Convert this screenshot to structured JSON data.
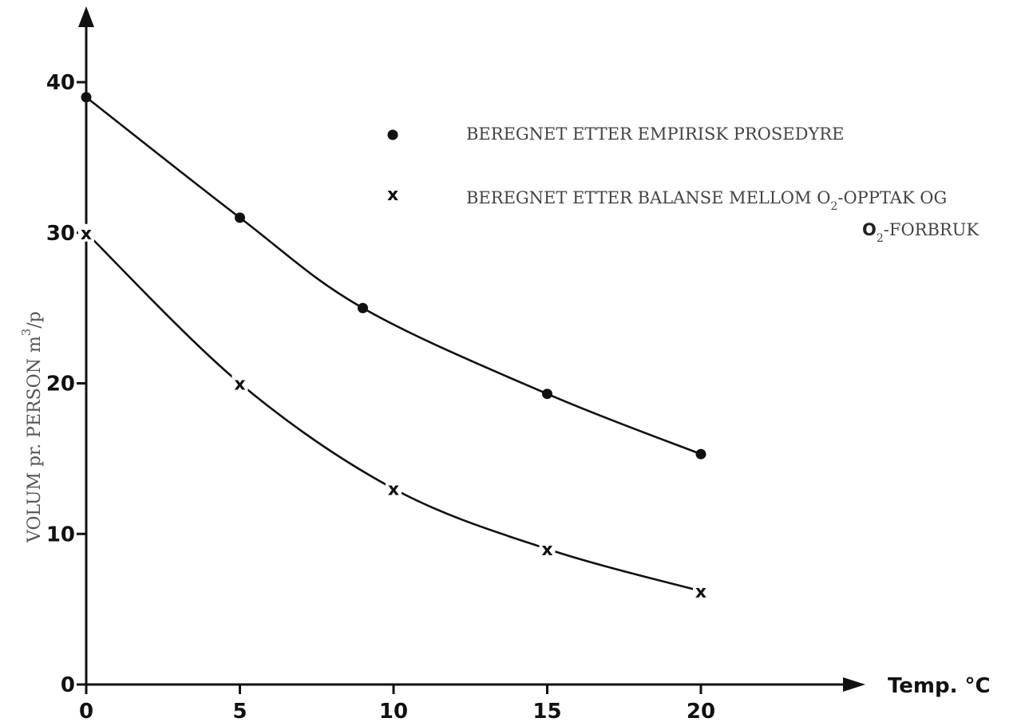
{
  "chart_data": {
    "type": "line",
    "xlabel": "Temp. °C",
    "ylabel": "VOLUM pr. PERSON m",
    "ylabel_sup": "3",
    "ylabel_unit_suffix": "/p",
    "xlim": [
      0,
      20
    ],
    "ylim": [
      0,
      40
    ],
    "x_ticks": [
      0,
      5,
      10,
      15,
      20
    ],
    "y_ticks": [
      0,
      10,
      20,
      30,
      40
    ],
    "grid": false,
    "legend_position": "top-right",
    "series": [
      {
        "name": "BEREGNET ETTER EMPIRISK PROSEDYRE",
        "marker": "dot",
        "x": [
          0,
          5,
          9,
          15,
          20
        ],
        "y": [
          39,
          31,
          25,
          19.3,
          15.3
        ]
      },
      {
        "name": "BEREGNET ETTER BALANSE MELLOM O2-OPPTAK OG O2-FORBRUK",
        "marker": "x",
        "x": [
          0,
          5,
          10,
          15,
          20
        ],
        "y": [
          30,
          20,
          13,
          9,
          6.2
        ]
      }
    ]
  },
  "legend": {
    "dot_text": "BEREGNET ETTER EMPIRISK PROSEDYRE",
    "cross_part1": "BEREGNET ETTER BALANSE MELLOM O",
    "cross_sub1": "2",
    "cross_part2": "-OPPTAK OG",
    "cross_line2_o": "O",
    "cross_sub2": "2",
    "cross_line2_rest": "-FORBRUK",
    "cross_marker_glyph": "x"
  }
}
